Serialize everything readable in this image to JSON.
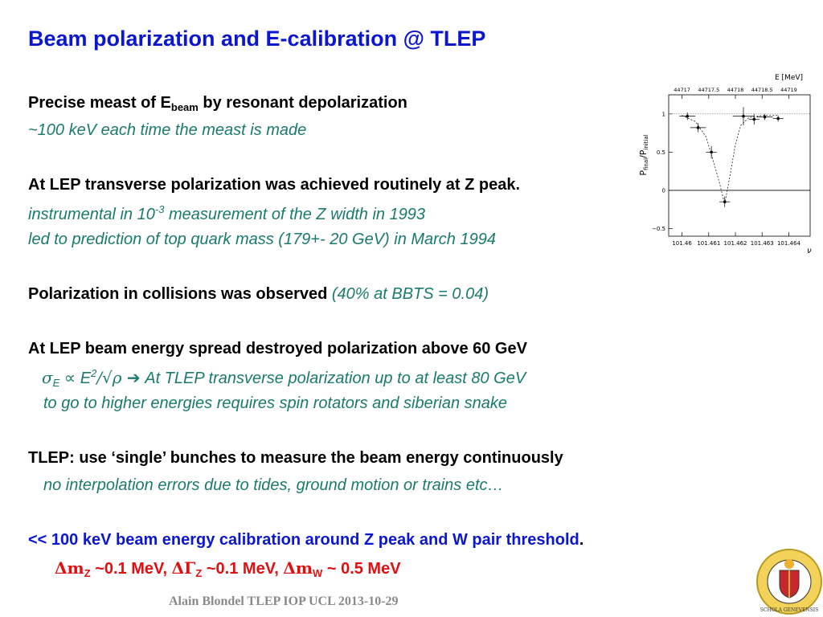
{
  "title": "Beam polarization and E-calibration @ TLEP",
  "s1": {
    "bold_pre": "Precise meast of E",
    "bold_sub": "beam",
    "bold_post": " by resonant depolarization",
    "italic": "~100 keV each time the meast is made"
  },
  "s2": {
    "bold": "At LEP transverse polarization was achieved routinely at Z peak.",
    "italic1_pre": "instrumental in 10",
    "italic1_sup": "-3",
    "italic1_post": " measurement of the Z width in 1993",
    "italic2": "led to prediction of top quark mass (179+- 20 GeV) in March 1994"
  },
  "s3": {
    "bold": "Polarization in collisions was observed ",
    "italic": "(40% at BBTS = 0.04)"
  },
  "s4": {
    "bold": "At LEP beam energy spread destroyed polarization above 60 GeV",
    "formula_sigma": "σ",
    "formula_sub": "E",
    "formula_prop": " ∝ E",
    "formula_sup": "2",
    "formula_tail": "/√ρ ",
    "arrow": "➔",
    "italic1": " At TLEP transverse polarization up to at least 80 GeV",
    "italic2": "to go to higher energies requires spin rotators and siberian snake"
  },
  "s5": {
    "bold": "TLEP: use ‘single’ bunches to measure the beam energy continuously",
    "italic": "no interpolation errors due to tides, ground motion or trains etc…"
  },
  "s6": {
    "blue": "<< 100 keV beam energy calibration around Z peak and W pair threshold",
    "blue_period": ".",
    "red1_sym": "Δm",
    "red1_sub": "Z",
    "red1_val": " ~0.1 MeV, ",
    "red2_sym": "ΔΓ",
    "red2_sub": "Z",
    "red2_val": " ~0.1 MeV,  ",
    "red3_sym": "Δm",
    "red3_sub": "W",
    "red3_val": " ~ 0.5 MeV"
  },
  "footer": "Alain Blondel TLEP  IOP UCL 2013-10-29",
  "seal_text": "SCHOLA GENEVENSIS 1559",
  "chart_data": {
    "type": "scatter",
    "top_axis_label": "E [MeV]",
    "top_ticks": [
      "44717",
      "44717.5",
      "44718",
      "44718.5",
      "44719"
    ],
    "x_ticks": [
      101.46,
      101.461,
      101.462,
      101.463,
      101.464
    ],
    "x_tick_labels": [
      "101.46",
      "101.461",
      "101.462",
      "101.463",
      "101.464"
    ],
    "xlabel": "ν",
    "ylabel_main": "P",
    "ylabel_sub1": "final",
    "ylabel_mid": "/P",
    "ylabel_sub2": "initial",
    "y_ticks": [
      -0.5,
      0,
      0.5,
      1
    ],
    "y_tick_labels": [
      "−0.5",
      "0",
      "0.5",
      "1"
    ],
    "xlim": [
      101.4595,
      101.4648
    ],
    "ylim": [
      -0.6,
      1.25
    ],
    "points": [
      {
        "x": 101.4602,
        "y": 0.97,
        "xerr": 0.0003,
        "yerr": 0.05
      },
      {
        "x": 101.4606,
        "y": 0.82,
        "xerr": 0.0003,
        "yerr": 0.06
      },
      {
        "x": 101.4611,
        "y": 0.5,
        "xerr": 0.0002,
        "yerr": 0.08
      },
      {
        "x": 101.4616,
        "y": -0.15,
        "xerr": 0.0002,
        "yerr": 0.07
      },
      {
        "x": 101.4623,
        "y": 0.97,
        "xerr": 0.0004,
        "yerr": 0.12
      },
      {
        "x": 101.4627,
        "y": 0.93,
        "xerr": 0.0002,
        "yerr": 0.07
      },
      {
        "x": 101.4631,
        "y": 0.96,
        "xerr": 0.0003,
        "yerr": 0.04
      },
      {
        "x": 101.4636,
        "y": 0.94,
        "xerr": 0.0002,
        "yerr": 0.04
      }
    ],
    "fit_curve": [
      [
        101.46,
        0.98
      ],
      [
        101.4605,
        0.9
      ],
      [
        101.4609,
        0.7
      ],
      [
        101.4612,
        0.35
      ],
      [
        101.4614,
        0.1
      ],
      [
        101.4616,
        -0.18
      ],
      [
        101.4618,
        0.2
      ],
      [
        101.462,
        0.6
      ],
      [
        101.4622,
        0.85
      ],
      [
        101.4625,
        0.95
      ],
      [
        101.463,
        0.98
      ],
      [
        101.4636,
        0.98
      ]
    ],
    "reference_line_y": 1.0,
    "zero_line_y": 0
  }
}
